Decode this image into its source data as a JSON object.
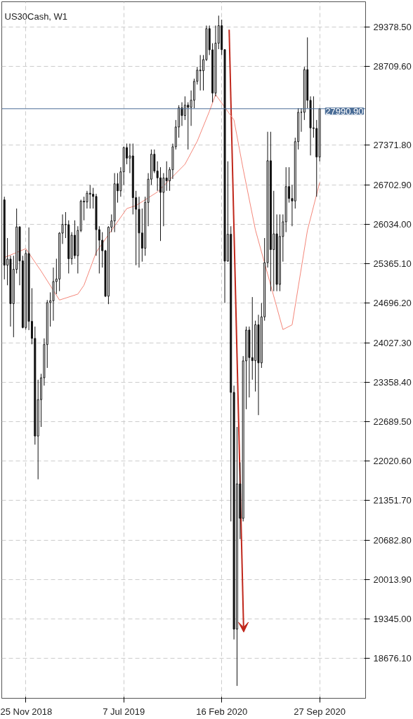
{
  "chart_data": {
    "type": "candlestick",
    "title": "US30Cash, W1",
    "x": [
      "2018-10-07",
      "2018-10-14",
      "2018-10-21",
      "2018-10-28",
      "2018-11-04",
      "2018-11-11",
      "2018-11-18",
      "2018-11-25",
      "2018-12-02",
      "2018-12-09",
      "2018-12-16",
      "2018-12-23",
      "2018-12-30",
      "2019-01-06",
      "2019-01-13",
      "2019-01-20",
      "2019-01-27",
      "2019-02-03",
      "2019-02-10",
      "2019-02-17",
      "2019-02-24",
      "2019-03-03",
      "2019-03-10",
      "2019-03-17",
      "2019-03-24",
      "2019-03-31",
      "2019-04-07",
      "2019-04-14",
      "2019-04-21",
      "2019-04-28",
      "2019-05-05",
      "2019-05-12",
      "2019-05-19",
      "2019-05-26",
      "2019-06-02",
      "2019-06-09",
      "2019-06-16",
      "2019-06-23",
      "2019-06-30",
      "2019-07-07",
      "2019-07-14",
      "2019-07-21",
      "2019-07-28",
      "2019-08-04",
      "2019-08-11",
      "2019-08-18",
      "2019-08-25",
      "2019-09-01",
      "2019-09-08",
      "2019-09-15",
      "2019-09-22",
      "2019-09-29",
      "2019-10-06",
      "2019-10-13",
      "2019-10-20",
      "2019-10-27",
      "2019-11-03",
      "2019-11-10",
      "2019-11-17",
      "2019-11-24",
      "2019-12-01",
      "2019-12-08",
      "2019-12-15",
      "2019-12-22",
      "2019-12-29",
      "2020-01-05",
      "2020-01-12",
      "2020-01-19",
      "2020-01-26",
      "2020-02-02",
      "2020-02-09",
      "2020-02-16",
      "2020-02-23",
      "2020-03-01",
      "2020-03-08",
      "2020-03-15",
      "2020-03-22",
      "2020-03-29",
      "2020-04-05",
      "2020-04-12",
      "2020-04-19",
      "2020-04-26",
      "2020-05-03",
      "2020-05-10",
      "2020-05-17",
      "2020-05-24",
      "2020-05-31",
      "2020-06-07",
      "2020-06-14",
      "2020-06-21",
      "2020-06-28",
      "2020-07-05",
      "2020-07-12",
      "2020-07-19",
      "2020-07-26",
      "2020-08-02",
      "2020-08-09",
      "2020-08-16",
      "2020-08-23",
      "2020-08-30",
      "2020-09-06",
      "2020-09-13",
      "2020-09-20",
      "2020-09-27"
    ],
    "ohlc": [
      [
        26447,
        26500,
        25100,
        25340
      ],
      [
        25340,
        25800,
        25000,
        25444
      ],
      [
        25444,
        25500,
        24300,
        24688
      ],
      [
        24688,
        25500,
        24120,
        25270
      ],
      [
        25270,
        26300,
        25200,
        25989
      ],
      [
        25989,
        26000,
        25000,
        25413
      ],
      [
        25413,
        25500,
        24270,
        24285
      ],
      [
        24285,
        25600,
        24250,
        25538
      ],
      [
        25538,
        25980,
        24240,
        24389
      ],
      [
        24389,
        24950,
        24000,
        24100
      ],
      [
        24100,
        24300,
        22300,
        22445
      ],
      [
        22445,
        23400,
        21713,
        23062
      ],
      [
        23062,
        23500,
        22600,
        23433
      ],
      [
        23433,
        24100,
        23300,
        23996
      ],
      [
        23996,
        24750,
        23600,
        24706
      ],
      [
        24706,
        24880,
        24300,
        24737
      ],
      [
        24737,
        25300,
        24400,
        25063
      ],
      [
        25063,
        25450,
        24850,
        25106
      ],
      [
        25106,
        25900,
        24900,
        25883
      ],
      [
        25883,
        26200,
        25700,
        26031
      ],
      [
        26031,
        26240,
        25800,
        26026
      ],
      [
        26026,
        26100,
        25200,
        25450
      ],
      [
        25450,
        25900,
        25350,
        25848
      ],
      [
        25848,
        26100,
        25450,
        25502
      ],
      [
        25502,
        26000,
        25200,
        25928
      ],
      [
        25928,
        26450,
        25900,
        26424
      ],
      [
        26424,
        26500,
        26100,
        26412
      ],
      [
        26412,
        26600,
        26300,
        26559
      ],
      [
        26559,
        26700,
        26300,
        26543
      ],
      [
        26543,
        26650,
        26300,
        26504
      ],
      [
        26504,
        26550,
        25500,
        25942
      ],
      [
        25942,
        26000,
        25200,
        25764
      ],
      [
        25764,
        25900,
        25300,
        25585
      ],
      [
        25585,
        25600,
        24800,
        24815
      ],
      [
        24815,
        26000,
        24680,
        25983
      ],
      [
        25983,
        26200,
        25900,
        26090
      ],
      [
        26090,
        26900,
        25900,
        26719
      ],
      [
        26719,
        26900,
        26400,
        26600
      ],
      [
        26600,
        27000,
        26500,
        26922
      ],
      [
        26922,
        27350,
        26700,
        27332
      ],
      [
        27332,
        27400,
        27050,
        27154
      ],
      [
        27154,
        27400,
        26900,
        27192
      ],
      [
        27192,
        27400,
        26200,
        26485
      ],
      [
        26485,
        26600,
        25340,
        26287
      ],
      [
        26287,
        26500,
        25300,
        25886
      ],
      [
        25886,
        26300,
        25400,
        25628
      ],
      [
        25628,
        26500,
        25500,
        26403
      ],
      [
        26403,
        26900,
        26000,
        26797
      ],
      [
        26797,
        27300,
        26700,
        27220
      ],
      [
        27220,
        27300,
        26900,
        26935
      ],
      [
        26935,
        27100,
        26600,
        26820
      ],
      [
        26820,
        27000,
        25750,
        26573
      ],
      [
        26573,
        26900,
        26000,
        26817
      ],
      [
        26817,
        27100,
        26600,
        26770
      ],
      [
        26770,
        27000,
        26600,
        26958
      ],
      [
        26958,
        27400,
        26800,
        27347
      ],
      [
        27347,
        27800,
        27300,
        27681
      ],
      [
        27681,
        28050,
        27500,
        28005
      ],
      [
        28005,
        28100,
        27700,
        27875
      ],
      [
        27875,
        28200,
        27800,
        28051
      ],
      [
        28051,
        28100,
        27300,
        28015
      ],
      [
        28015,
        28300,
        27700,
        28135
      ],
      [
        28135,
        28500,
        28000,
        28455
      ],
      [
        28455,
        28700,
        28400,
        28645
      ],
      [
        28645,
        28900,
        28300,
        28634
      ],
      [
        28634,
        28900,
        28300,
        28823
      ],
      [
        28823,
        29400,
        28800,
        29348
      ],
      [
        29348,
        29400,
        28900,
        28989
      ],
      [
        28989,
        29100,
        28100,
        28256
      ],
      [
        28256,
        29400,
        28200,
        29102
      ],
      [
        29102,
        29568,
        29000,
        29398
      ],
      [
        29398,
        29500,
        28900,
        28992
      ],
      [
        28992,
        29000,
        24700,
        25409
      ],
      [
        25409,
        27100,
        25400,
        25864
      ],
      [
        25864,
        26000,
        21000,
        23185
      ],
      [
        23185,
        23300,
        19000,
        19174
      ],
      [
        19174,
        22600,
        18213,
        21636
      ],
      [
        21636,
        22000,
        20700,
        21052
      ],
      [
        21052,
        23800,
        21000,
        23719
      ],
      [
        23719,
        24300,
        22900,
        24242
      ],
      [
        24242,
        24300,
        23100,
        23775
      ],
      [
        23775,
        24800,
        23400,
        23723
      ],
      [
        23723,
        24400,
        23200,
        24331
      ],
      [
        24331,
        24500,
        22800,
        23685
      ],
      [
        23685,
        24700,
        23600,
        24465
      ],
      [
        24465,
        25800,
        24400,
        25383
      ],
      [
        25383,
        27600,
        25300,
        27110
      ],
      [
        27110,
        27600,
        24900,
        25605
      ],
      [
        25605,
        26600,
        24900,
        25871
      ],
      [
        25871,
        26200,
        24900,
        25015
      ],
      [
        25015,
        26200,
        24900,
        25827
      ],
      [
        25827,
        26200,
        25400,
        26075
      ],
      [
        26075,
        27000,
        25900,
        26672
      ],
      [
        26672,
        27000,
        26400,
        26470
      ],
      [
        26470,
        26700,
        26000,
        26428
      ],
      [
        26428,
        27500,
        26300,
        27433
      ],
      [
        27433,
        28000,
        27300,
        27931
      ],
      [
        27931,
        28000,
        27600,
        27930
      ],
      [
        27930,
        28700,
        27800,
        28653
      ],
      [
        28653,
        29199,
        28000,
        28133
      ],
      [
        28133,
        28200,
        27200,
        27666
      ],
      [
        27666,
        28200,
        27500,
        27657
      ],
      [
        27657,
        27800,
        26500,
        27173
      ],
      [
        27173,
        28000,
        27100,
        27990.9
      ]
    ],
    "series": [
      {
        "type": "line",
        "color": "#f4877a",
        "x": [
          "2018-10-07",
          "2018-11-25",
          "2018-12-30",
          "2019-02-10",
          "2019-03-24",
          "2019-04-07",
          "2019-05-05",
          "2019-07-14",
          "2019-08-04",
          "2019-09-22",
          "2019-11-24",
          "2019-12-22",
          "2020-01-19",
          "2020-02-02",
          "2020-03-15",
          "2020-04-05",
          "2020-05-03",
          "2020-07-05",
          "2020-07-26",
          "2020-08-30",
          "2020-09-27"
        ],
        "values": [
          25470,
          25620,
          25240,
          24750,
          24850,
          25000,
          25560,
          26300,
          26350,
          26580,
          27050,
          27440,
          27950,
          28230,
          27800,
          26970,
          25940,
          24250,
          24330,
          25930,
          26740
        ]
      }
    ],
    "xlim": [
      "2018-10-01",
      "2021-01-10"
    ],
    "xticks": [
      {
        "value": "2018-11-25",
        "label": "25 Nov 2018"
      },
      {
        "value": "2019-07-07",
        "label": "7 Jul 2019"
      },
      {
        "value": "2020-02-16",
        "label": "16 Feb 2020"
      },
      {
        "value": "2020-09-27",
        "label": "27 Sep 2020"
      }
    ],
    "ylim": [
      18003,
      29803
    ],
    "yticks": [
      {
        "value": 18676.1,
        "label": "18676.10"
      },
      {
        "value": 19345.0,
        "label": "19345.00"
      },
      {
        "value": 20013.9,
        "label": "20013.90"
      },
      {
        "value": 20682.8,
        "label": "20682.80"
      },
      {
        "value": 21351.7,
        "label": "21351.70"
      },
      {
        "value": 22020.6,
        "label": "22020.60"
      },
      {
        "value": 22689.5,
        "label": "22689.50"
      },
      {
        "value": 23358.4,
        "label": "23358.40"
      },
      {
        "value": 24027.3,
        "label": "24027.30"
      },
      {
        "value": 24696.2,
        "label": "24696.20"
      },
      {
        "value": 25365.1,
        "label": "25365.10"
      },
      {
        "value": 26034.0,
        "label": "26034.00"
      },
      {
        "value": 26702.9,
        "label": "26702.90"
      },
      {
        "value": 27371.8,
        "label": "27371.80"
      },
      {
        "value": 28709.6,
        "label": "28709.60"
      },
      {
        "value": 29378.5,
        "label": "29378.50"
      }
    ],
    "ref_lines": [
      {
        "axis": "y",
        "value": 27990.9,
        "label": "27990.90",
        "color": "#4a6c96"
      }
    ],
    "grid": true
  }
}
